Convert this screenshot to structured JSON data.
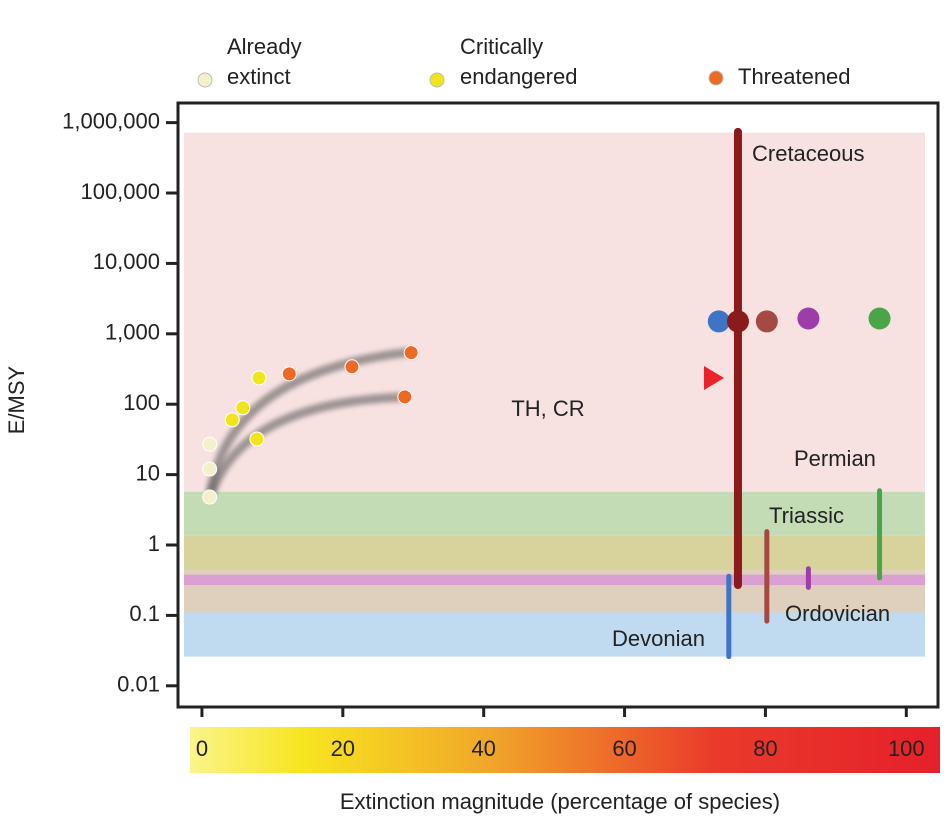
{
  "chart_data": {
    "type": "scatter",
    "xlabel": "Extinction magnitude (percentage of species)",
    "ylabel": "E/MSY",
    "ylog": true,
    "xlim": [
      -3.4,
      104.5
    ],
    "ylim": [
      0.005,
      1900000
    ],
    "xticks": [
      0,
      20,
      40,
      60,
      80,
      100
    ],
    "yticks": [
      0.01,
      0.1,
      1,
      10,
      100,
      {
        "value": 1000,
        "label": "1,000"
      },
      {
        "value": 10000,
        "label": "10,000"
      },
      {
        "value": 100000,
        "label": "100,000"
      },
      {
        "value": 1000000,
        "label": "1,000,000"
      }
    ],
    "series": [
      {
        "name": "Already extinct",
        "color": "#f4f0cc",
        "x": [
          1.1,
          1.1,
          1.1
        ],
        "values": [
          4.8,
          12,
          27
        ]
      },
      {
        "name": "Critically endangered",
        "color": "#f2e41c",
        "x": [
          4.3,
          5.8,
          8.1,
          7.8
        ],
        "values": [
          60,
          89,
          236,
          32
        ]
      },
      {
        "name": "Threatened",
        "color": "#ec6a24",
        "x": [
          12.4,
          21.3,
          29.7,
          28.8
        ],
        "values": [
          270,
          340,
          540,
          127
        ]
      }
    ],
    "annotation": "TH, CR",
    "extinctions": [
      {
        "name": "Cretaceous",
        "color": "#8b1a1a",
        "x": 76.1,
        "rate": 1500,
        "range": [
          0.27,
          740000
        ]
      },
      {
        "name": "Devonian",
        "color": "#3e74c4",
        "x": 74.8,
        "rate": 1500,
        "range": [
          0.026,
          0.36
        ]
      },
      {
        "name": "Triassic",
        "color": "#a34a42",
        "x": 80.2,
        "rate": 1500,
        "range": [
          0.083,
          1.55
        ]
      },
      {
        "name": "Ordovician",
        "color": "#9c3da8",
        "x": 86.1,
        "rate": 1650,
        "range": [
          0.25,
          0.46
        ]
      },
      {
        "name": "Permian",
        "color": "#4aa548",
        "x": 96.2,
        "rate": 1650,
        "range": [
          0.34,
          5.9
        ]
      }
    ],
    "bands": [
      {
        "color": "#f6dede",
        "range": [
          5.7,
          720000
        ]
      },
      {
        "color": "#bcd8ae",
        "range": [
          1.35,
          5.7
        ]
      },
      {
        "color": "#d4cd92",
        "range": [
          0.44,
          1.35
        ]
      },
      {
        "color": "#dccab6",
        "range": [
          0.11,
          0.44
        ]
      },
      {
        "color": "#d99ad4",
        "range": [
          0.27,
          0.38
        ]
      },
      {
        "color": "#b9d6ee",
        "range": [
          0.026,
          0.11
        ]
      }
    ]
  }
}
